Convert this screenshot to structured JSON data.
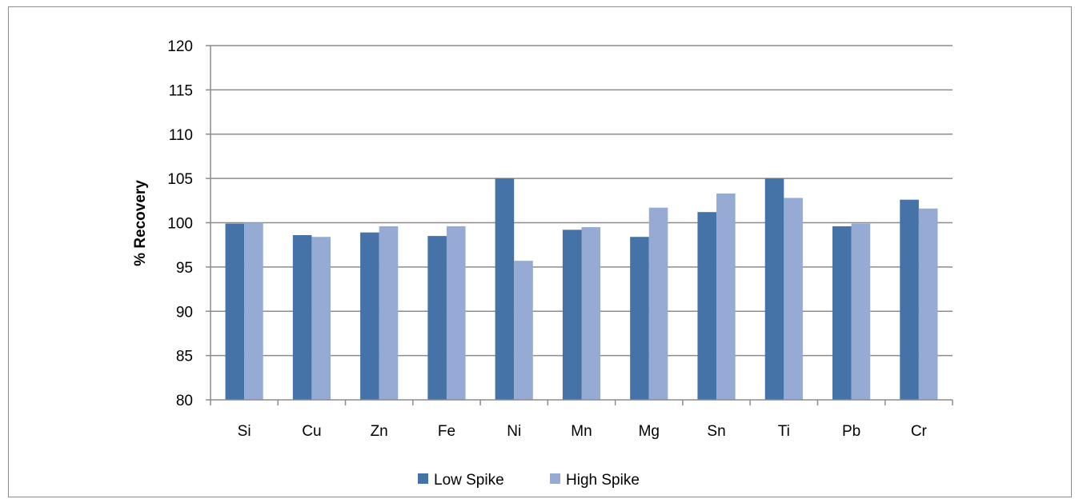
{
  "chart_data": {
    "type": "bar",
    "categories": [
      "Si",
      "Cu",
      "Zn",
      "Fe",
      "Ni",
      "Mn",
      "Mg",
      "Sn",
      "Ti",
      "Pb",
      "Cr"
    ],
    "series": [
      {
        "name": "Low Spike",
        "color": "#4572a7",
        "values": [
          99.9,
          98.6,
          98.9,
          98.5,
          105.0,
          99.2,
          98.4,
          101.2,
          105.0,
          99.6,
          102.6
        ]
      },
      {
        "name": "High Spike",
        "color": "#95abd3",
        "values": [
          100.0,
          98.4,
          99.6,
          99.6,
          95.7,
          99.5,
          101.7,
          103.3,
          102.8,
          99.9,
          101.6
        ]
      }
    ],
    "title": "",
    "xlabel": "",
    "ylabel": "% Recovery",
    "ylim": [
      80,
      120
    ],
    "yticks": [
      80,
      85,
      90,
      95,
      100,
      105,
      110,
      115,
      120
    ],
    "grid": true,
    "legend": "bottom"
  }
}
